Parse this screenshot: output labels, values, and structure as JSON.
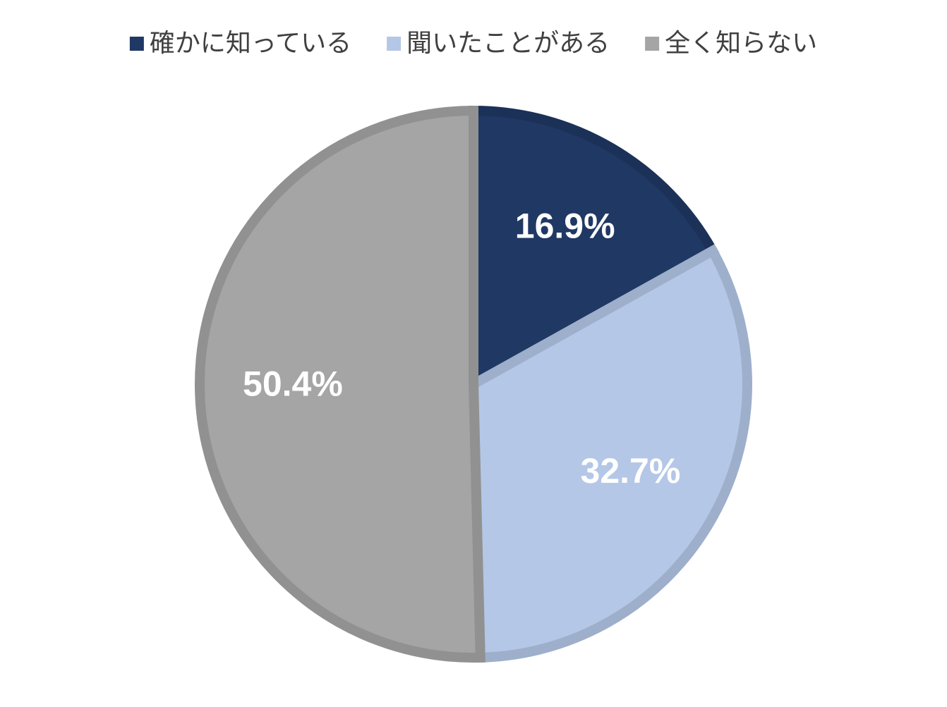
{
  "chart_data": {
    "type": "pie",
    "categories": [
      "確かに知っている",
      "聞いたことがある",
      "全く知らない"
    ],
    "values": [
      16.9,
      32.7,
      50.4
    ],
    "value_labels": [
      "16.9%",
      "32.7%",
      "50.4%"
    ],
    "colors": [
      "#203864",
      "#b4c7e7",
      "#a5a5a5"
    ],
    "legend": "top"
  }
}
